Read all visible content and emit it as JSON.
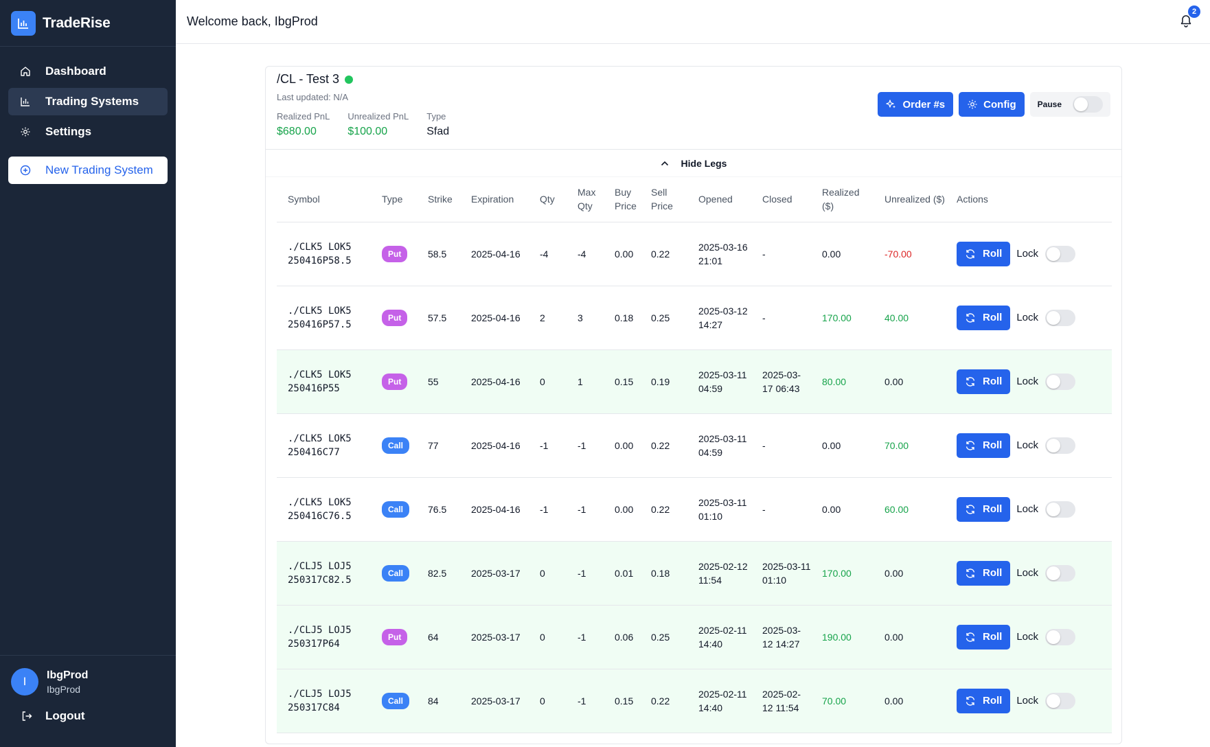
{
  "app": {
    "name": "TradeRise"
  },
  "sidebar": {
    "items": [
      {
        "label": "Dashboard",
        "icon": "home-icon"
      },
      {
        "label": "Trading Systems",
        "icon": "bar-chart-icon"
      },
      {
        "label": "Settings",
        "icon": "gear-icon"
      }
    ],
    "new_system_label": "New Trading System",
    "user": {
      "initial": "I",
      "name": "IbgProd",
      "sub": "IbgProd"
    },
    "logout_label": "Logout"
  },
  "header": {
    "welcome": "Welcome back, IbgProd",
    "notification_count": "2"
  },
  "system": {
    "title": "/CL - Test 3",
    "status_color": "#22c55e",
    "last_updated": "Last updated: N/A",
    "realized_label": "Realized PnL",
    "realized_value": "$680.00",
    "unrealized_label": "Unrealized PnL",
    "unrealized_value": "$100.00",
    "type_label": "Type",
    "type_value": "Sfad",
    "order_button": "Order #s",
    "config_button": "Config",
    "pause_label": "Pause"
  },
  "legs_toggle_label": "Hide Legs",
  "table": {
    "headers": [
      "Symbol",
      "Type",
      "Strike",
      "Expiration",
      "Qty",
      "Max Qty",
      "Buy Price",
      "Sell Price",
      "Opened",
      "Closed",
      "Realized ($)",
      "Unrealized ($)",
      "Actions"
    ],
    "roll_label": "Roll",
    "lock_label": "Lock",
    "rows": [
      {
        "symbol": "./CLK5 LOK5 250416P58.5",
        "type": "Put",
        "strike": "58.5",
        "expiration": "2025-04-16",
        "qty": "-4",
        "max_qty": "-4",
        "buy": "0.00",
        "sell": "0.22",
        "opened": "2025-03-16 21:01",
        "closed": "-",
        "realized": "0.00",
        "unrealized": "-70.00",
        "is_closed": false
      },
      {
        "symbol": "./CLK5 LOK5 250416P57.5",
        "type": "Put",
        "strike": "57.5",
        "expiration": "2025-04-16",
        "qty": "2",
        "max_qty": "3",
        "buy": "0.18",
        "sell": "0.25",
        "opened": "2025-03-12 14:27",
        "closed": "-",
        "realized": "170.00",
        "unrealized": "40.00",
        "is_closed": false
      },
      {
        "symbol": "./CLK5 LOK5 250416P55",
        "type": "Put",
        "strike": "55",
        "expiration": "2025-04-16",
        "qty": "0",
        "max_qty": "1",
        "buy": "0.15",
        "sell": "0.19",
        "opened": "2025-03-11 04:59",
        "closed": "2025-03-17 06:43",
        "realized": "80.00",
        "unrealized": "0.00",
        "is_closed": true
      },
      {
        "symbol": "./CLK5 LOK5 250416C77",
        "type": "Call",
        "strike": "77",
        "expiration": "2025-04-16",
        "qty": "-1",
        "max_qty": "-1",
        "buy": "0.00",
        "sell": "0.22",
        "opened": "2025-03-11 04:59",
        "closed": "-",
        "realized": "0.00",
        "unrealized": "70.00",
        "is_closed": false
      },
      {
        "symbol": "./CLK5 LOK5 250416C76.5",
        "type": "Call",
        "strike": "76.5",
        "expiration": "2025-04-16",
        "qty": "-1",
        "max_qty": "-1",
        "buy": "0.00",
        "sell": "0.22",
        "opened": "2025-03-11 01:10",
        "closed": "-",
        "realized": "0.00",
        "unrealized": "60.00",
        "is_closed": false
      },
      {
        "symbol": "./CLJ5 LOJ5 250317C82.5",
        "type": "Call",
        "strike": "82.5",
        "expiration": "2025-03-17",
        "qty": "0",
        "max_qty": "-1",
        "buy": "0.01",
        "sell": "0.18",
        "opened": "2025-02-12 11:54",
        "closed": "2025-03-11 01:10",
        "realized": "170.00",
        "unrealized": "0.00",
        "is_closed": true
      },
      {
        "symbol": "./CLJ5 LOJ5 250317P64",
        "type": "Put",
        "strike": "64",
        "expiration": "2025-03-17",
        "qty": "0",
        "max_qty": "-1",
        "buy": "0.06",
        "sell": "0.25",
        "opened": "2025-02-11 14:40",
        "closed": "2025-03-12 14:27",
        "realized": "190.00",
        "unrealized": "0.00",
        "is_closed": true
      },
      {
        "symbol": "./CLJ5 LOJ5 250317C84",
        "type": "Call",
        "strike": "84",
        "expiration": "2025-03-17",
        "qty": "0",
        "max_qty": "-1",
        "buy": "0.15",
        "sell": "0.22",
        "opened": "2025-02-11 14:40",
        "closed": "2025-02-12 11:54",
        "realized": "70.00",
        "unrealized": "0.00",
        "is_closed": true
      }
    ]
  }
}
